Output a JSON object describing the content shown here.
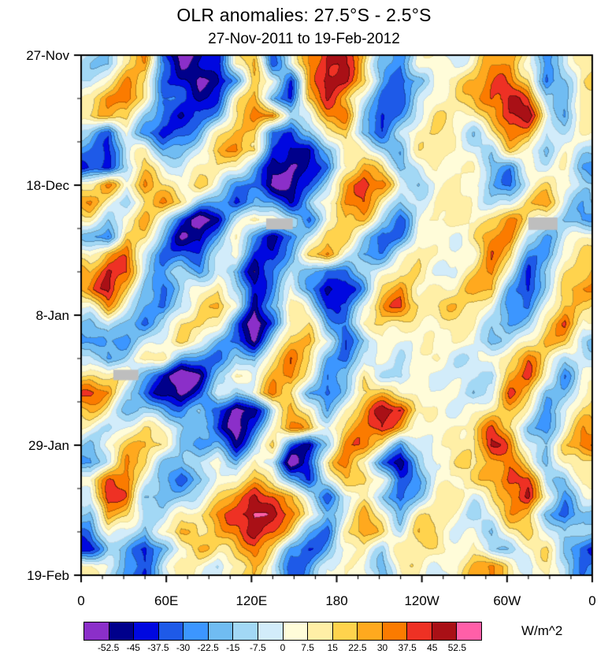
{
  "chart_data": {
    "type": "heatmap",
    "variant": "hovmoller-time-longitude",
    "title": "OLR anomalies: 27.5°S - 2.5°S",
    "subtitle": "27-Nov-2011 to 19-Feb-2012",
    "units_label": "W/m^2",
    "x_axis": {
      "tick_labels": [
        "0",
        "60E",
        "120E",
        "180",
        "120W",
        "60W",
        "0"
      ],
      "minor_per_major": 3
    },
    "y_axis": {
      "tick_labels": [
        "27-Nov",
        "18-Dec",
        "8-Jan",
        "29-Jan",
        "19-Feb"
      ],
      "minor_per_major": 2
    },
    "colorbar": {
      "tick_labels": [
        "-52.5",
        "-45",
        "-37.5",
        "-30",
        "-22.5",
        "-15",
        "-7.5",
        "0",
        "7.5",
        "15",
        "22.5",
        "30",
        "37.5",
        "45",
        "52.5"
      ],
      "colors": [
        "#8B2FC9",
        "#00008B",
        "#0008E0",
        "#1E5AE8",
        "#3C96FF",
        "#70BCF2",
        "#A2D8F5",
        "#D2ECFA",
        "#FFFCD9",
        "#FFEFA6",
        "#FFD34D",
        "#FFA91E",
        "#FB7B00",
        "#EE3124",
        "#A91016",
        "#FF5FA8"
      ]
    },
    "frame_color": "#000000",
    "missing_color": "#BEBEBE",
    "missing_data_patches": [
      {
        "x_frac": 0.362,
        "y_frac": 0.314,
        "w_frac": 0.052,
        "h_frac": 0.021
      },
      {
        "x_frac": 0.063,
        "y_frac": 0.605,
        "w_frac": 0.049,
        "h_frac": 0.02
      },
      {
        "x_frac": 0.875,
        "y_frac": 0.312,
        "w_frac": 0.057,
        "h_frac": 0.024
      }
    ],
    "field": {
      "cols": 28,
      "rows": 30,
      "bin_width": 7.5,
      "bin_min_value": -56.25,
      "encoding": "hex char 0-f = W/m^2 anomaly bin, 0 = below -52.5, f = above +52.5",
      "rows_data": [
        "659b41129b48cdc9548878ab9589",
        "79ba31015a84bdda635889bca46a",
        "9cd942138b53acb8447889cdc659",
        "abb632359bc56bc7358988bdd848",
        "64842469ba3249a54799879cb667",
        "4368568bca2125986589987a9576",
        "3259879a9511348b946899658785",
        "9a7b98a8431247bdb65898547997",
        "b85ab964245369cc857988669b86",
        "869b8301598748ba6489989a8865",
        "54ba621484237a96359889ab6578",
        "8bc8443693259b6458a988ba5489",
        "adc7564862475236899879c8469a",
        "bda5358a735841259b888ab637ab",
        "8b84269b82697348bc98998548b9",
        "685359a840389659a987896469c8",
        "56468a853159b846987898568a96",
        "8469a644648ba53886898789b857",
        "9886302696ac84596598886bc748",
        "ba64214858ca53689889868ca569",
        "98565463028b958acd98789a868a",
        "86898642049cb89bdb8789b9659b",
        "69ab953426a426bca57888cb86ac",
        "58ca6468596038c9526898ac9589",
        "9cd853598a9426ab845889bdc658",
        "7dc6468acdca5379636898acd846",
        "5b9569acdfdb858a8589879bb535",
        "48648b9bcec9649b96988869a857",
        "354258a9ab954689688989568964",
        "974479868974589858988ab86875"
      ]
    }
  }
}
